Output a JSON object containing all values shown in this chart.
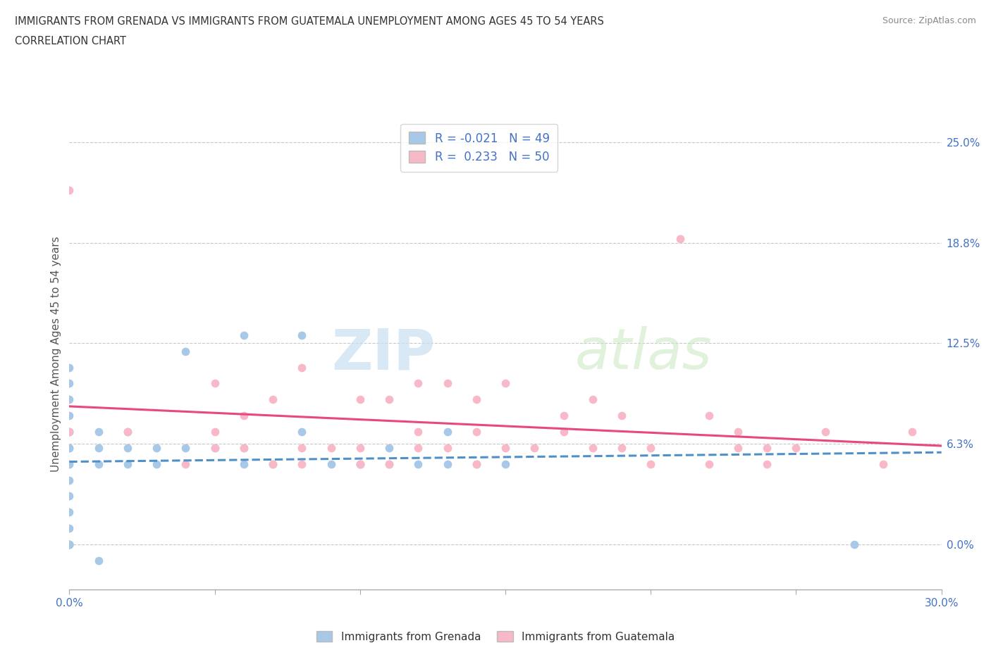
{
  "title_line1": "IMMIGRANTS FROM GRENADA VS IMMIGRANTS FROM GUATEMALA UNEMPLOYMENT AMONG AGES 45 TO 54 YEARS",
  "title_line2": "CORRELATION CHART",
  "source_text": "Source: ZipAtlas.com",
  "ylabel": "Unemployment Among Ages 45 to 54 years",
  "xmin": 0.0,
  "xmax": 0.3,
  "ymin": -0.028,
  "ymax": 0.265,
  "yticks": [
    0.0,
    0.0625,
    0.125,
    0.1875,
    0.25
  ],
  "ytick_labels": [
    "0.0%",
    "6.3%",
    "12.5%",
    "18.8%",
    "25.0%"
  ],
  "xticks": [
    0.0,
    0.05,
    0.1,
    0.15,
    0.2,
    0.25,
    0.3
  ],
  "xtick_labels": [
    "0.0%",
    "",
    "",
    "",
    "",
    "",
    "30.0%"
  ],
  "watermark_zip": "ZIP",
  "watermark_atlas": "atlas",
  "grenada_color": "#a8c8e8",
  "guatemala_color": "#f9b8c8",
  "grenada_line_color": "#5090c8",
  "guatemala_line_color": "#e84880",
  "axis_color": "#4472c4",
  "tick_label_color": "#4472c4",
  "grid_color": "#c8c8c8",
  "R_grenada": -0.021,
  "N_grenada": 49,
  "R_guatemala": 0.233,
  "N_guatemala": 50,
  "grenada_x": [
    0.0,
    0.0,
    0.0,
    0.0,
    0.0,
    0.0,
    0.0,
    0.0,
    0.0,
    0.0,
    0.0,
    0.0,
    0.0,
    0.0,
    0.0,
    0.0,
    0.0,
    0.0,
    0.0,
    0.0,
    0.01,
    0.01,
    0.01,
    0.02,
    0.02,
    0.02,
    0.03,
    0.03,
    0.04,
    0.04,
    0.05,
    0.06,
    0.06,
    0.06,
    0.07,
    0.08,
    0.08,
    0.09,
    0.1,
    0.1,
    0.11,
    0.11,
    0.12,
    0.13,
    0.13,
    0.14,
    0.15,
    0.27,
    0.01
  ],
  "grenada_y": [
    0.0,
    0.0,
    0.0,
    0.0,
    0.0,
    0.0,
    0.01,
    0.02,
    0.03,
    0.04,
    0.05,
    0.06,
    0.07,
    0.07,
    0.08,
    0.09,
    0.1,
    0.11,
    0.06,
    0.05,
    0.05,
    0.06,
    0.07,
    0.05,
    0.06,
    0.07,
    0.05,
    0.06,
    0.06,
    0.12,
    0.06,
    0.05,
    0.06,
    0.13,
    0.05,
    0.07,
    0.13,
    0.05,
    0.05,
    0.05,
    0.05,
    0.06,
    0.05,
    0.05,
    0.07,
    0.05,
    0.05,
    0.0,
    -0.01
  ],
  "guatemala_x": [
    0.0,
    0.0,
    0.02,
    0.04,
    0.05,
    0.05,
    0.05,
    0.06,
    0.06,
    0.07,
    0.07,
    0.08,
    0.08,
    0.08,
    0.09,
    0.1,
    0.1,
    0.1,
    0.11,
    0.11,
    0.12,
    0.12,
    0.12,
    0.13,
    0.13,
    0.14,
    0.14,
    0.14,
    0.15,
    0.15,
    0.16,
    0.17,
    0.17,
    0.18,
    0.18,
    0.19,
    0.19,
    0.2,
    0.2,
    0.21,
    0.22,
    0.22,
    0.23,
    0.23,
    0.24,
    0.24,
    0.25,
    0.26,
    0.28,
    0.29
  ],
  "guatemala_y": [
    0.07,
    0.22,
    0.07,
    0.05,
    0.06,
    0.07,
    0.1,
    0.06,
    0.08,
    0.05,
    0.09,
    0.05,
    0.06,
    0.11,
    0.06,
    0.05,
    0.06,
    0.09,
    0.05,
    0.09,
    0.06,
    0.07,
    0.1,
    0.06,
    0.1,
    0.05,
    0.07,
    0.09,
    0.06,
    0.1,
    0.06,
    0.07,
    0.08,
    0.06,
    0.09,
    0.06,
    0.08,
    0.05,
    0.06,
    0.19,
    0.05,
    0.08,
    0.06,
    0.07,
    0.05,
    0.06,
    0.06,
    0.07,
    0.05,
    0.07
  ]
}
